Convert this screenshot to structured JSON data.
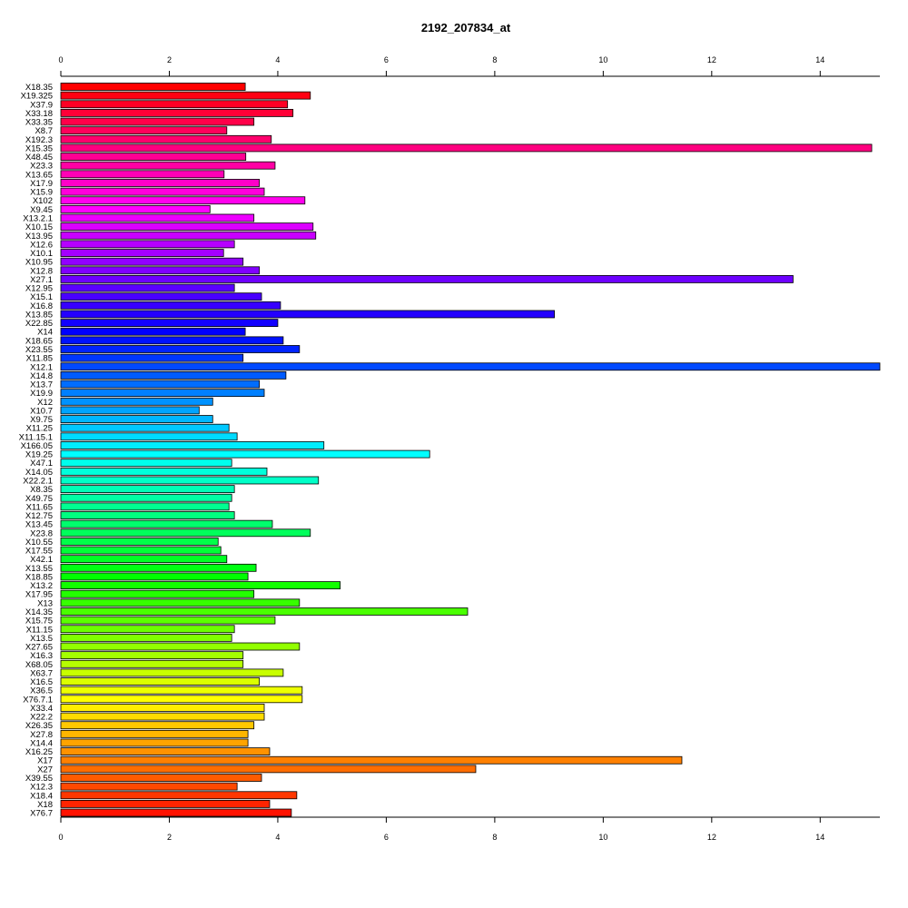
{
  "chart_data": {
    "type": "bar",
    "orientation": "horizontal",
    "title": "2192_207834_at",
    "xlabel": "",
    "ylabel": "",
    "xlim": [
      0,
      15.1
    ],
    "x_ticks": [
      0,
      2,
      4,
      6,
      8,
      10,
      12,
      14
    ],
    "x_tick_labels": [
      "0",
      "2",
      "4",
      "6",
      "8",
      "10",
      "12",
      "14"
    ],
    "axis_position": "top and bottom",
    "grid": false,
    "legend": "none",
    "color_scheme": "rainbow (red → magenta → blue → cyan → green → yellow → orange → red), one color per bar",
    "categories": [
      "X18.35",
      "X19.325",
      "X37.9",
      "X33.18",
      "X33.35",
      "X8.7",
      "X192.3",
      "X15.35",
      "X48.45",
      "X23.3",
      "X13.65",
      "X17.9",
      "X15.9",
      "X102",
      "X9.45",
      "X13.2.1",
      "X10.15",
      "X13.95",
      "X12.6",
      "X10.1",
      "X10.95",
      "X12.8",
      "X27.1",
      "X12.95",
      "X15.1",
      "X16.8",
      "X13.85",
      "X22.85",
      "X14",
      "X18.65",
      "X23.55",
      "X11.85",
      "X12.1",
      "X14.8",
      "X13.7",
      "X19.9",
      "X12",
      "X10.7",
      "X9.75",
      "X11.25",
      "X11.15.1",
      "X166.05",
      "X19.25",
      "X47.1",
      "X14.05",
      "X22.2.1",
      "X8.35",
      "X49.75",
      "X11.65",
      "X12.75",
      "X13.45",
      "X23.8",
      "X10.55",
      "X17.55",
      "X42.1",
      "X13.55",
      "X18.85",
      "X13.2",
      "X17.95",
      "X13",
      "X14.35",
      "X15.75",
      "X11.15",
      "X13.5",
      "X27.65",
      "X16.3",
      "X68.05",
      "X63.7",
      "X16.5",
      "X36.5",
      "X76.7.1",
      "X33.4",
      "X22.2",
      "X26.35",
      "X27.8",
      "X14.4",
      "X16.25",
      "X17",
      "X27",
      "X39.55",
      "X12.3",
      "X18.4",
      "X18",
      "X76.7"
    ],
    "values": [
      3.4,
      4.6,
      4.18,
      4.28,
      3.56,
      3.06,
      3.88,
      14.95,
      3.41,
      3.95,
      3.01,
      3.66,
      3.75,
      4.5,
      2.75,
      3.56,
      4.65,
      4.7,
      3.2,
      3.0,
      3.36,
      3.66,
      13.5,
      3.2,
      3.7,
      4.05,
      9.1,
      4.0,
      3.4,
      4.1,
      4.4,
      3.36,
      15.1,
      4.15,
      3.66,
      3.75,
      2.8,
      2.55,
      2.8,
      3.1,
      3.25,
      4.85,
      6.8,
      3.15,
      3.8,
      4.75,
      3.2,
      3.15,
      3.1,
      3.2,
      3.9,
      4.6,
      2.9,
      2.95,
      3.06,
      3.6,
      3.45,
      5.15,
      3.56,
      4.4,
      7.5,
      3.95,
      3.2,
      3.15,
      4.4,
      3.36,
      3.36,
      4.1,
      3.66,
      4.45,
      4.45,
      3.75,
      3.75,
      3.56,
      3.45,
      3.45,
      3.85,
      11.45,
      7.65,
      3.7,
      3.25,
      4.35,
      3.85,
      4.25
    ]
  }
}
